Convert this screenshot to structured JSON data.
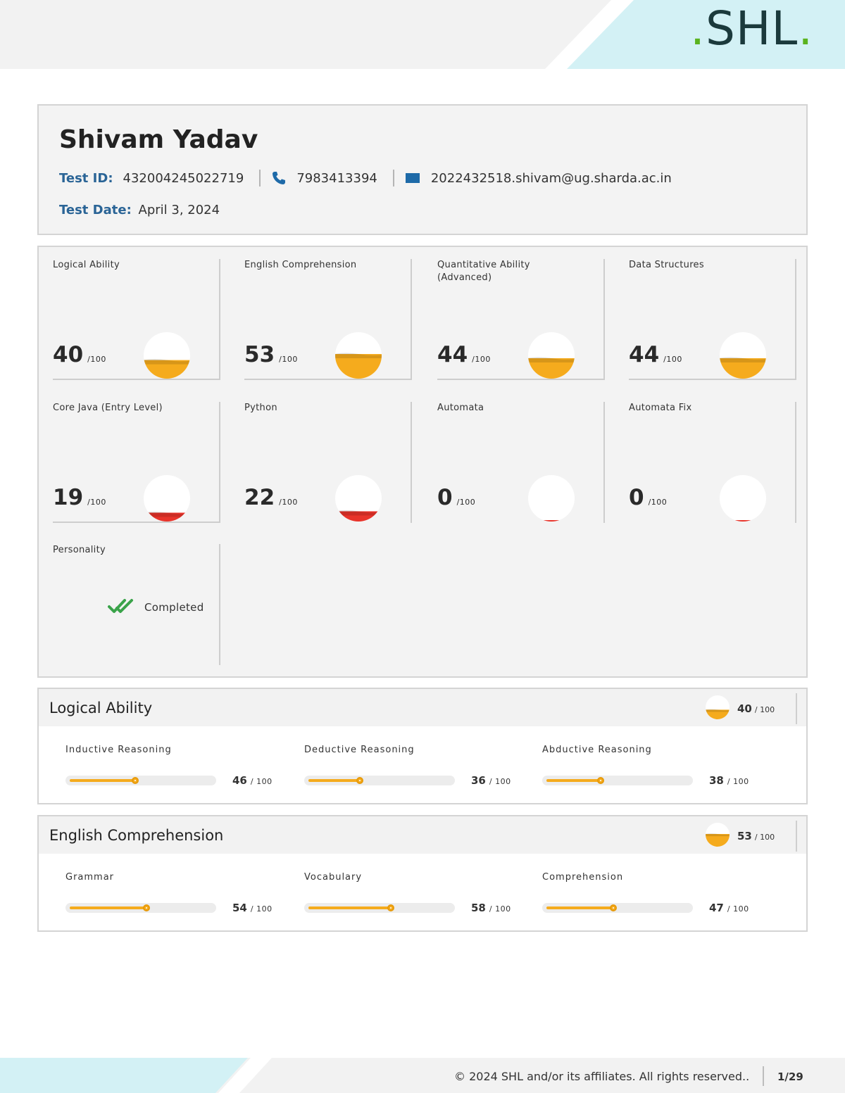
{
  "brand": {
    "logo_text": "SHL"
  },
  "candidate": {
    "name": "Shivam Yadav",
    "test_id_label": "Test ID:",
    "test_id": "432004245022719",
    "phone": "7983413394",
    "email": "2022432518.shivam@ug.sharda.ac.in",
    "test_date_label": "Test Date:",
    "test_date": "April 3, 2024"
  },
  "colors": {
    "amber": "#f5ab1d",
    "red": "#e8332a",
    "label_blue": "#2a6496",
    "check_green": "#3aa34a"
  },
  "scores": [
    {
      "title": "Logical Ability",
      "score": "40",
      "denominator": "/100",
      "level": 0.4,
      "color": "#f5ab1d"
    },
    {
      "title": "English Comprehension",
      "score": "53",
      "denominator": "/100",
      "level": 0.53,
      "color": "#f5ab1d"
    },
    {
      "title": "Quantitative Ability (Advanced)",
      "score": "44",
      "denominator": "/100",
      "level": 0.44,
      "color": "#f5ab1d"
    },
    {
      "title": "Data Structures",
      "score": "44",
      "denominator": "/100",
      "level": 0.44,
      "color": "#f5ab1d"
    },
    {
      "title": "Core Java (Entry Level)",
      "score": "19",
      "denominator": "/100",
      "level": 0.19,
      "color": "#e8332a"
    },
    {
      "title": "Python",
      "score": "22",
      "denominator": "/100",
      "level": 0.22,
      "color": "#e8332a"
    },
    {
      "title": "Automata",
      "score": "0",
      "denominator": "/100",
      "level": 0.0,
      "color": "#e8332a"
    },
    {
      "title": "Automata Fix",
      "score": "0",
      "denominator": "/100",
      "level": 0.0,
      "color": "#e8332a"
    }
  ],
  "personality": {
    "title": "Personality",
    "status": "Completed"
  },
  "sections": [
    {
      "title": "Logical Ability",
      "score": "40",
      "denominator": "/ 100",
      "level": 0.4,
      "subs": [
        {
          "title": "Inductive Reasoning",
          "score": "46",
          "denominator": "/ 100",
          "level": 0.46
        },
        {
          "title": "Deductive Reasoning",
          "score": "36",
          "denominator": "/ 100",
          "level": 0.36
        },
        {
          "title": "Abductive Reasoning",
          "score": "38",
          "denominator": "/ 100",
          "level": 0.38
        }
      ]
    },
    {
      "title": "English Comprehension",
      "score": "53",
      "denominator": "/ 100",
      "level": 0.53,
      "subs": [
        {
          "title": "Grammar",
          "score": "54",
          "denominator": "/ 100",
          "level": 0.54
        },
        {
          "title": "Vocabulary",
          "score": "58",
          "denominator": "/ 100",
          "level": 0.58
        },
        {
          "title": "Comprehension",
          "score": "47",
          "denominator": "/ 100",
          "level": 0.47
        }
      ]
    }
  ],
  "footer": {
    "copyright": "© 2024 SHL and/or its affiliates. All rights reserved..",
    "page": "1/29"
  }
}
